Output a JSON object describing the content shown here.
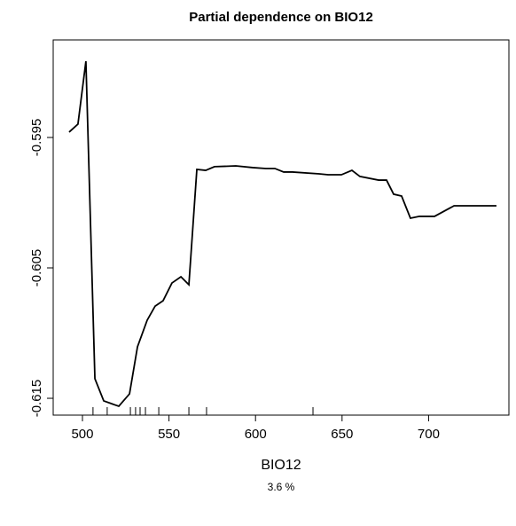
{
  "chart_data": {
    "type": "line",
    "title": "Partial dependence on BIO12",
    "xlabel": "BIO12",
    "subtitle": "3.6 %",
    "x": [
      492.3,
      497.4,
      502.0,
      507.2,
      512.3,
      521.0,
      527.2,
      531.8,
      537.4,
      542.0,
      546.6,
      551.7,
      556.9,
      561.5,
      566.1,
      571.2,
      576.3,
      588.6,
      598.4,
      606.0,
      611.2,
      616.3,
      621.4,
      636.8,
      641.9,
      649.6,
      655.7,
      660.3,
      671.1,
      675.7,
      679.8,
      684.4,
      689.5,
      694.7,
      703.4,
      714.7,
      739.2
    ],
    "series": [
      {
        "color": "#000000",
        "values": [
          -0.59459,
          -0.59398,
          -0.58915,
          -0.6135,
          -0.6152,
          -0.61561,
          -0.61466,
          -0.61105,
          -0.60901,
          -0.60793,
          -0.60752,
          -0.60616,
          -0.60568,
          -0.60629,
          -0.59745,
          -0.59752,
          -0.59724,
          -0.59718,
          -0.59731,
          -0.59738,
          -0.59738,
          -0.59765,
          -0.59765,
          -0.59779,
          -0.59786,
          -0.59786,
          -0.59752,
          -0.59799,
          -0.59827,
          -0.59827,
          -0.59935,
          -0.59949,
          -0.60119,
          -0.60105,
          -0.60105,
          -0.60024,
          -0.60024
        ]
      }
    ],
    "rug": [
      506.1,
      514.3,
      527.7,
      530.7,
      533.3,
      536.4,
      544.1,
      561.5,
      571.7,
      633.2
    ],
    "xlim": [
      483.1,
      746.4
    ],
    "ylim": [
      -0.61629,
      -0.58752
    ],
    "xticks": [
      500,
      550,
      600,
      650,
      700
    ],
    "yticks": [
      -0.595,
      -0.605,
      -0.615
    ]
  }
}
